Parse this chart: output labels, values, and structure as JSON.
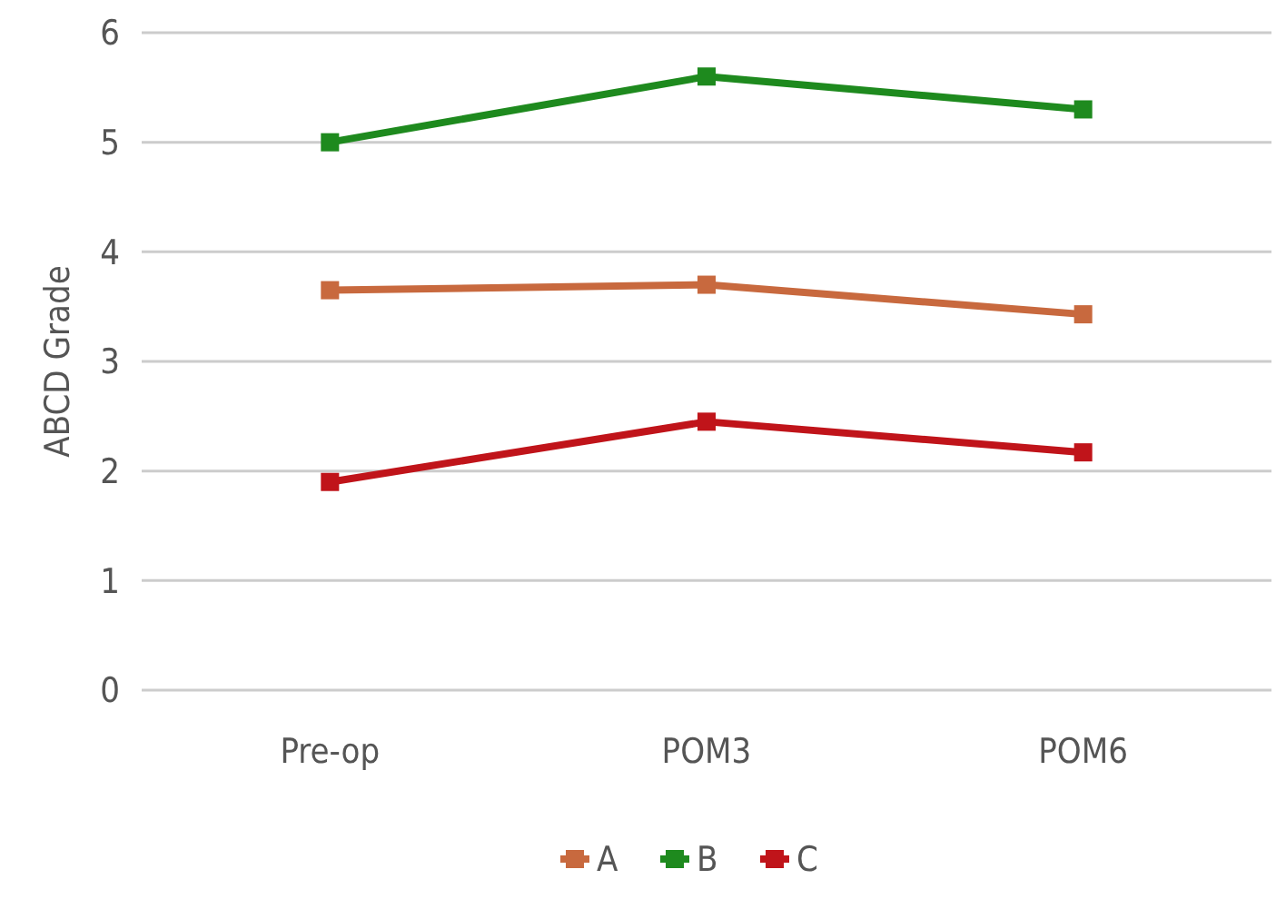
{
  "chart_data": {
    "type": "line",
    "ylabel": "ABCD Grade",
    "categories": [
      "Pre-op",
      "POM3",
      "POM6"
    ],
    "series": [
      {
        "name": "A",
        "color": "#c8693e",
        "values": [
          3.65,
          3.7,
          3.43
        ]
      },
      {
        "name": "B",
        "color": "#1e8a1e",
        "values": [
          5.0,
          5.6,
          5.3
        ]
      },
      {
        "name": "C",
        "color": "#c0141a",
        "values": [
          1.9,
          2.45,
          2.17
        ]
      }
    ],
    "ylim": [
      0,
      6
    ],
    "yticks": [
      0,
      1,
      2,
      3,
      4,
      5,
      6
    ],
    "grid": "y",
    "legend": "bottom",
    "marker": "square",
    "line_style": "solid"
  }
}
